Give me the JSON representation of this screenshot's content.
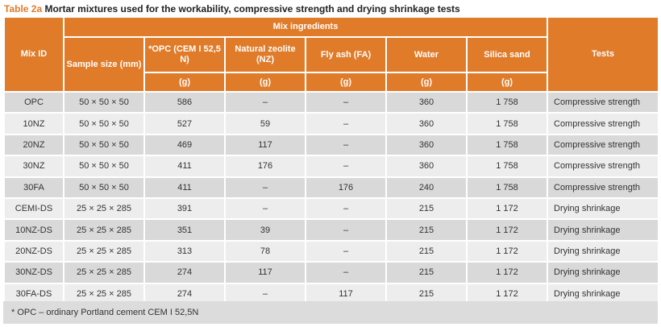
{
  "caption": {
    "label": "Table 2a",
    "text": "Mortar mixtures used for the workability, compressive strength and drying shrinkage tests"
  },
  "headers": {
    "mix_id": "Mix ID",
    "mix_ingredients": "Mix ingredients",
    "sample_size": "Sample size (mm)",
    "opc": "*OPC (CEM I 52,5 N)",
    "nz": "Natural zeolite (NZ)",
    "fa": "Fly ash (FA)",
    "water": "Water",
    "sand": "Silica sand",
    "tests": "Tests",
    "unit": "(g)"
  },
  "rows": [
    {
      "id": "OPC",
      "size": "50 × 50 × 50",
      "opc": "586",
      "nz": "–",
      "fa": "–",
      "water": "360",
      "sand": "1 758",
      "test": "Compressive strength"
    },
    {
      "id": "10NZ",
      "size": "50 × 50 × 50",
      "opc": "527",
      "nz": "59",
      "fa": "–",
      "water": "360",
      "sand": "1 758",
      "test": "Compressive strength"
    },
    {
      "id": "20NZ",
      "size": "50 × 50 × 50",
      "opc": "469",
      "nz": "117",
      "fa": "–",
      "water": "360",
      "sand": "1 758",
      "test": "Compressive strength"
    },
    {
      "id": "30NZ",
      "size": "50 × 50 × 50",
      "opc": "411",
      "nz": "176",
      "fa": "–",
      "water": "360",
      "sand": "1 758",
      "test": "Compressive strength"
    },
    {
      "id": "30FA",
      "size": "50 × 50 × 50",
      "opc": "411",
      "nz": "–",
      "fa": "176",
      "water": "240",
      "sand": "1 758",
      "test": "Compressive strength"
    },
    {
      "id": "CEMI-DS",
      "size": "25 × 25 × 285",
      "opc": "391",
      "nz": "–",
      "fa": "–",
      "water": "215",
      "sand": "1 172",
      "test": "Drying shrinkage"
    },
    {
      "id": "10NZ-DS",
      "size": "25 × 25 × 285",
      "opc": "351",
      "nz": "39",
      "fa": "–",
      "water": "215",
      "sand": "1 172",
      "test": "Drying shrinkage"
    },
    {
      "id": "20NZ-DS",
      "size": "25 × 25 × 285",
      "opc": "313",
      "nz": "78",
      "fa": "–",
      "water": "215",
      "sand": "1 172",
      "test": "Drying shrinkage"
    },
    {
      "id": "30NZ-DS",
      "size": "25 × 25 × 285",
      "opc": "274",
      "nz": "117",
      "fa": "–",
      "water": "215",
      "sand": "1 172",
      "test": "Drying shrinkage"
    },
    {
      "id": "30FA-DS",
      "size": "25 × 25 × 285",
      "opc": "274",
      "nz": "–",
      "fa": "117",
      "water": "215",
      "sand": "1 172",
      "test": "Drying shrinkage"
    }
  ],
  "footnote": "*  OPC – ordinary Portland cement CEM I 52,5N",
  "colors": {
    "header": "#e07b2a",
    "row_dark": "#d9d9d9",
    "row_light": "#ededed"
  }
}
